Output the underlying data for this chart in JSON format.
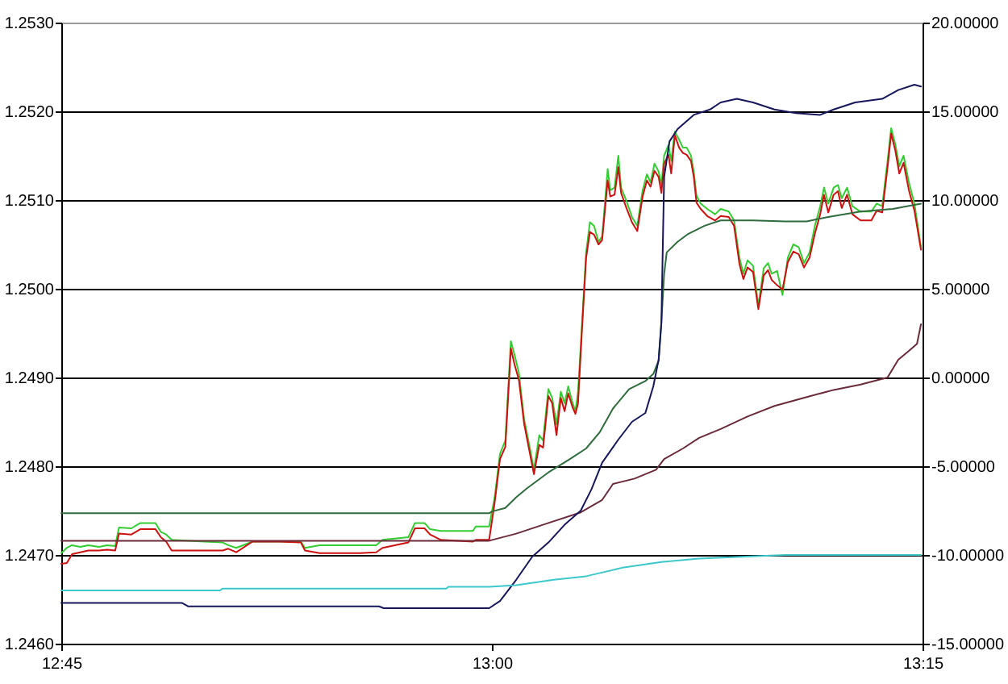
{
  "chart_data": {
    "type": "line",
    "xlim": [
      12.75,
      13.25
    ],
    "xticks": [
      {
        "value": 12.75,
        "label": "12:45"
      },
      {
        "value": 13,
        "label": "13:00"
      },
      {
        "value": 13.25,
        "label": "13:15"
      }
    ],
    "ylim": [
      1.246,
      1.253
    ],
    "yticks": [
      {
        "value": 1.246,
        "label": "1.2460"
      },
      {
        "value": 1.247,
        "label": "1.2470"
      },
      {
        "value": 1.248,
        "label": "1.2480"
      },
      {
        "value": 1.249,
        "label": "1.2490"
      },
      {
        "value": 1.25,
        "label": "1.2500"
      },
      {
        "value": 1.251,
        "label": "1.2510"
      },
      {
        "value": 1.252,
        "label": "1.2520"
      },
      {
        "value": 1.253,
        "label": "1.2530"
      }
    ],
    "y2lim": [
      -15,
      20
    ],
    "y2ticks": [
      {
        "value": -15,
        "label": "-15.00000"
      },
      {
        "value": -10,
        "label": "-10.00000"
      },
      {
        "value": -5,
        "label": "-5.00000"
      },
      {
        "value": 0,
        "label": "0.00000"
      },
      {
        "value": 5,
        "label": "5.00000"
      },
      {
        "value": 10,
        "label": "10.00000"
      },
      {
        "value": 15,
        "label": "15.00000"
      },
      {
        "value": 20,
        "label": "20.00000"
      }
    ],
    "grid": "y",
    "x": [
      12.75,
      12.7532,
      12.7563,
      12.761,
      12.7657,
      12.7719,
      12.7766,
      12.7813,
      12.7835,
      12.7907,
      12.7959,
      12.8047,
      12.8078,
      12.8109,
      12.8141,
      12.8329,
      12.8437,
      12.8469,
      12.8516,
      12.861,
      12.8766,
      12.8891,
      12.8915,
      12.9,
      12.9234,
      12.9328,
      12.9365,
      12.9515,
      12.9553,
      12.9609,
      12.9641,
      12.9703,
      12.989,
      12.9906,
      12.9984,
      13.0016,
      13.0047,
      13.0078,
      13.011,
      13.0131,
      13.0157,
      13.0187,
      13.0218,
      13.0244,
      13.0275,
      13.0297,
      13.0328,
      13.035,
      13.0375,
      13.04,
      13.0422,
      13.0443,
      13.0469,
      13.0485,
      13.05,
      13.0522,
      13.0547,
      13.0569,
      13.0593,
      13.0619,
      13.064,
      13.0656,
      13.0672,
      13.0687,
      13.0712,
      13.0734,
      13.075,
      13.0781,
      13.0813,
      13.0844,
      13.0875,
      13.09,
      13.0921,
      13.0944,
      13.0968,
      13.0984,
      13.1,
      13.1025,
      13.1041,
      13.1062,
      13.1087,
      13.1109,
      13.1131,
      13.1156,
      13.1172,
      13.1188,
      13.1212,
      13.125,
      13.1296,
      13.1328,
      13.1375,
      13.1406,
      13.1437,
      13.146,
      13.1484,
      13.1516,
      13.1547,
      13.1578,
      13.1603,
      13.1624,
      13.1656,
      13.1687,
      13.1718,
      13.175,
      13.1781,
      13.1812,
      13.1844,
      13.1875,
      13.1906,
      13.1928,
      13.1953,
      13.1984,
      13.2009,
      13.2031,
      13.2062,
      13.2093,
      13.214,
      13.2203,
      13.2234,
      13.2266,
      13.2297,
      13.2318,
      13.2343,
      13.2365,
      13.239,
      13.2421,
      13.2453,
      13.2491
    ],
    "series": [
      {
        "color": "#33cc33",
        "values": [
          1.24702,
          1.24708,
          1.24711,
          1.24709,
          1.24711,
          1.24709,
          1.24711,
          1.2471,
          1.24731,
          1.2473,
          1.24736,
          1.24736,
          1.24726,
          1.24723,
          1.24717,
          1.24715,
          1.24714,
          1.24711,
          1.24708,
          1.24715,
          1.24715,
          1.24715,
          1.24708,
          1.24711,
          1.24711,
          1.24711,
          1.24717,
          1.2472,
          1.24736,
          1.24736,
          1.24729,
          1.24727,
          1.24727,
          1.24732,
          1.24732,
          1.24765,
          1.24814,
          1.24829,
          1.24941,
          1.24926,
          1.24905,
          1.24853,
          1.24823,
          1.24796,
          1.24835,
          1.24829,
          1.24887,
          1.24877,
          1.24847,
          1.24884,
          1.24871,
          1.2489,
          1.24871,
          1.24862,
          1.24884,
          1.24956,
          1.25041,
          1.25075,
          1.25071,
          1.25053,
          1.25059,
          1.25096,
          1.25135,
          1.25111,
          1.25114,
          1.2515,
          1.25114,
          1.25099,
          1.25081,
          1.25071,
          1.25111,
          1.25129,
          1.2512,
          1.25141,
          1.25132,
          1.25117,
          1.2515,
          1.25162,
          1.25144,
          1.25177,
          1.25168,
          1.25159,
          1.25159,
          1.2515,
          1.25132,
          1.25105,
          1.25096,
          1.2509,
          1.25084,
          1.2509,
          1.25087,
          1.25077,
          1.25035,
          1.25017,
          1.25032,
          1.25026,
          1.24981,
          1.25023,
          1.25029,
          1.25017,
          1.2502,
          1.24993,
          1.25035,
          1.2505,
          1.25047,
          1.25029,
          1.25041,
          1.25071,
          1.25093,
          1.25114,
          1.25096,
          1.25114,
          1.25117,
          1.25102,
          1.25114,
          1.25093,
          1.25087,
          1.25087,
          1.25096,
          1.25093,
          1.25144,
          1.25181,
          1.25162,
          1.25138,
          1.2515,
          1.2512,
          1.25096,
          1.25047
        ]
      },
      {
        "color": "#cc1111",
        "values": [
          1.2469,
          1.24691,
          1.24701,
          1.24703,
          1.24705,
          1.24705,
          1.24706,
          1.24705,
          1.24724,
          1.24723,
          1.24729,
          1.24729,
          1.2472,
          1.24715,
          1.24705,
          1.24705,
          1.24705,
          1.24707,
          1.24703,
          1.24715,
          1.24715,
          1.24714,
          1.24705,
          1.24702,
          1.24702,
          1.24703,
          1.24708,
          1.24714,
          1.2473,
          1.2473,
          1.24723,
          1.24717,
          1.24715,
          1.24717,
          1.24717,
          1.24759,
          1.24808,
          1.24822,
          1.24933,
          1.24915,
          1.24897,
          1.24848,
          1.24817,
          1.24791,
          1.24824,
          1.24821,
          1.24879,
          1.24871,
          1.24835,
          1.24877,
          1.24862,
          1.24882,
          1.24866,
          1.24859,
          1.24871,
          1.24951,
          1.25035,
          1.25064,
          1.25061,
          1.2505,
          1.25055,
          1.25088,
          1.25122,
          1.25104,
          1.25106,
          1.25137,
          1.25108,
          1.25091,
          1.25075,
          1.25065,
          1.25104,
          1.25122,
          1.25115,
          1.25133,
          1.25126,
          1.25108,
          1.25141,
          1.25151,
          1.2513,
          1.25173,
          1.25159,
          1.25153,
          1.25151,
          1.25144,
          1.25126,
          1.25097,
          1.2509,
          1.25082,
          1.25077,
          1.25082,
          1.25081,
          1.25071,
          1.25028,
          1.25011,
          1.25024,
          1.25019,
          1.24977,
          1.25015,
          1.25021,
          1.2501,
          1.25004,
          1.24999,
          1.2503,
          1.25042,
          1.25039,
          1.25024,
          1.25035,
          1.25062,
          1.25084,
          1.25106,
          1.25086,
          1.25106,
          1.2511,
          1.25091,
          1.25106,
          1.25084,
          1.25077,
          1.25077,
          1.25088,
          1.25086,
          1.25137,
          1.25175,
          1.25155,
          1.2513,
          1.25142,
          1.25111,
          1.25088,
          1.25044
        ]
      },
      {
        "color": "#2f6b3c",
        "x": [
          12.75,
          12.9984,
          13.0,
          13.0078,
          13.0141,
          13.0203,
          13.0328,
          13.0453,
          13.0547,
          13.0625,
          13.0703,
          13.0797,
          13.0891,
          13.0937,
          13.0968,
          13.0984,
          13.1,
          13.1015,
          13.1078,
          13.1141,
          13.1235,
          13.1328,
          13.1516,
          13.1703,
          13.1828,
          13.1953,
          13.214,
          13.2328,
          13.2491
        ],
        "values": [
          1.24747,
          1.24747,
          1.24749,
          1.24753,
          1.24765,
          1.24775,
          1.24793,
          1.24808,
          1.2482,
          1.24838,
          1.24865,
          1.24887,
          1.24896,
          1.24904,
          1.24919,
          1.24962,
          1.25017,
          1.25041,
          1.25053,
          1.25062,
          1.25071,
          1.25077,
          1.25077,
          1.25076,
          1.25076,
          1.25081,
          1.25087,
          1.2509,
          1.25096
        ]
      },
      {
        "color": "#6b2a3a",
        "axis": "y2",
        "x": [
          12.75,
          12.9984,
          13.0141,
          13.0328,
          13.0516,
          13.064,
          13.0703,
          13.0828,
          13.0953,
          13.1,
          13.1109,
          13.1203,
          13.1328,
          13.1484,
          13.1641,
          13.1828,
          13.1984,
          13.214,
          13.2297,
          13.2359,
          13.2421,
          13.2468,
          13.2491
        ],
        "values": [
          -9.2,
          -9.2,
          -8.8,
          -8.2,
          -7.6,
          -6.9,
          -6.0,
          -5.7,
          -5.2,
          -4.6,
          -4.0,
          -3.4,
          -2.9,
          -2.2,
          -1.6,
          -1.1,
          -0.7,
          -0.4,
          0.0,
          1.0,
          1.5,
          1.9,
          3.0
        ]
      },
      {
        "color": "#16165a",
        "axis": "y2",
        "x": [
          12.75,
          12.82,
          12.8238,
          12.9344,
          12.9372,
          12.9984,
          13.0047,
          13.0141,
          13.0234,
          13.0328,
          13.0422,
          13.0516,
          13.0578,
          13.064,
          13.0734,
          13.0813,
          13.0891,
          13.0937,
          13.0968,
          13.0984,
          13.0991,
          13.1,
          13.1031,
          13.1078,
          13.1172,
          13.1266,
          13.1328,
          13.1422,
          13.1516,
          13.1641,
          13.1765,
          13.1906,
          13.1984,
          13.2109,
          13.2266,
          13.2359,
          13.2453,
          13.2491
        ],
        "values": [
          -12.7,
          -12.7,
          -12.9,
          -12.9,
          -13.0,
          -13.0,
          -12.6,
          -11.4,
          -10.1,
          -9.3,
          -8.3,
          -7.5,
          -6.3,
          -4.8,
          -3.5,
          -2.5,
          -2.0,
          -0.5,
          1.0,
          3.1,
          6.8,
          11.3,
          13.3,
          14.0,
          14.8,
          15.1,
          15.5,
          15.7,
          15.5,
          15.1,
          14.9,
          14.8,
          15.1,
          15.5,
          15.7,
          16.2,
          16.5,
          16.4
        ]
      },
      {
        "color": "#3cc8cc",
        "axis": "y2",
        "x": [
          12.75,
          12.8422,
          12.8435,
          12.9735,
          12.9747,
          12.9984,
          13.0141,
          13.0359,
          13.0547,
          13.0766,
          13.0984,
          13.1203,
          13.1453,
          13.1703,
          13.1984,
          13.2491
        ],
        "values": [
          -12.0,
          -12.0,
          -11.9,
          -11.9,
          -11.8,
          -11.8,
          -11.7,
          -11.4,
          -11.2,
          -10.7,
          -10.4,
          -10.2,
          -10.1,
          -10.0,
          -10.0,
          -10.0
        ]
      }
    ]
  }
}
